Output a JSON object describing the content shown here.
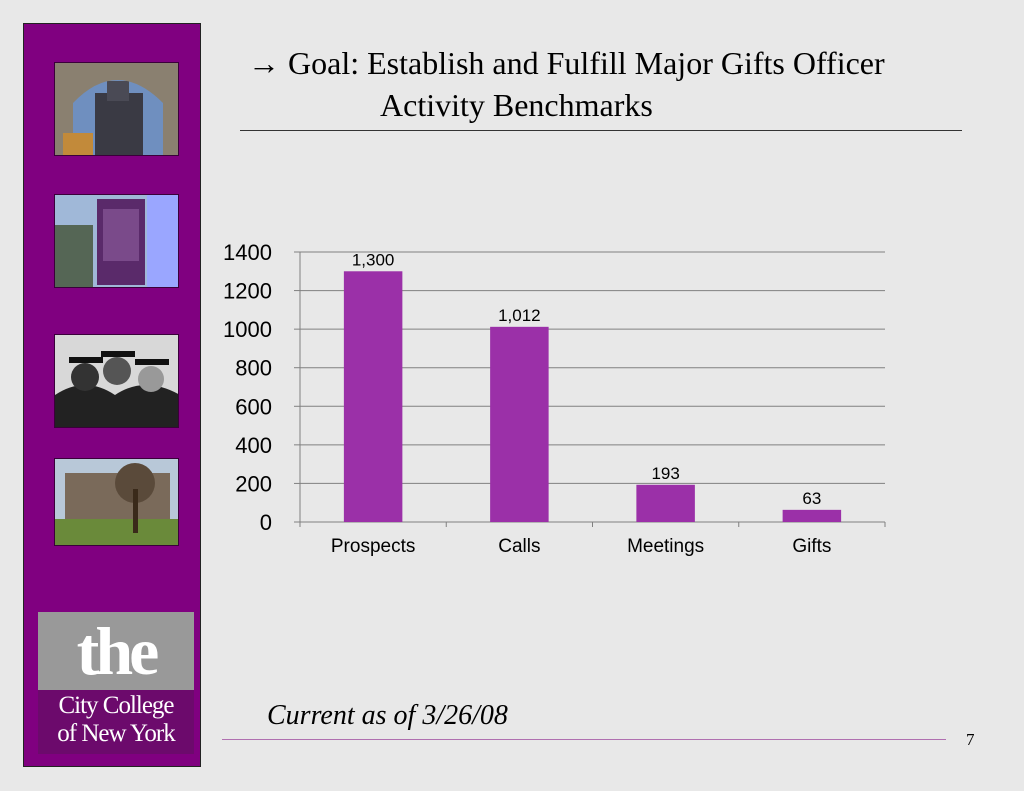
{
  "slide": {
    "title_line1": "→ Goal: Establish and Fulfill Major Gifts Officer",
    "title_line2": "Activity Benchmarks",
    "footer_note": "Current as of 3/26/08",
    "page_number": "7"
  },
  "logo": {
    "line1": "the",
    "line2": "City College",
    "line3": "of New York"
  },
  "colors": {
    "sidebar": "#800080",
    "bar": "#9b30a8",
    "background": "#e8e8e8"
  },
  "chart_data": {
    "type": "bar",
    "categories": [
      "Prospects",
      "Calls",
      "Meetings",
      "Gifts"
    ],
    "values": [
      1300,
      1012,
      193,
      63
    ],
    "data_labels": [
      "1,300",
      "1,012",
      "193",
      "63"
    ],
    "title": "",
    "xlabel": "",
    "ylabel": "",
    "ylim": [
      0,
      1400
    ],
    "yticks": [
      0,
      200,
      400,
      600,
      800,
      1000,
      1200,
      1400
    ],
    "grid": true,
    "legend": "none"
  }
}
